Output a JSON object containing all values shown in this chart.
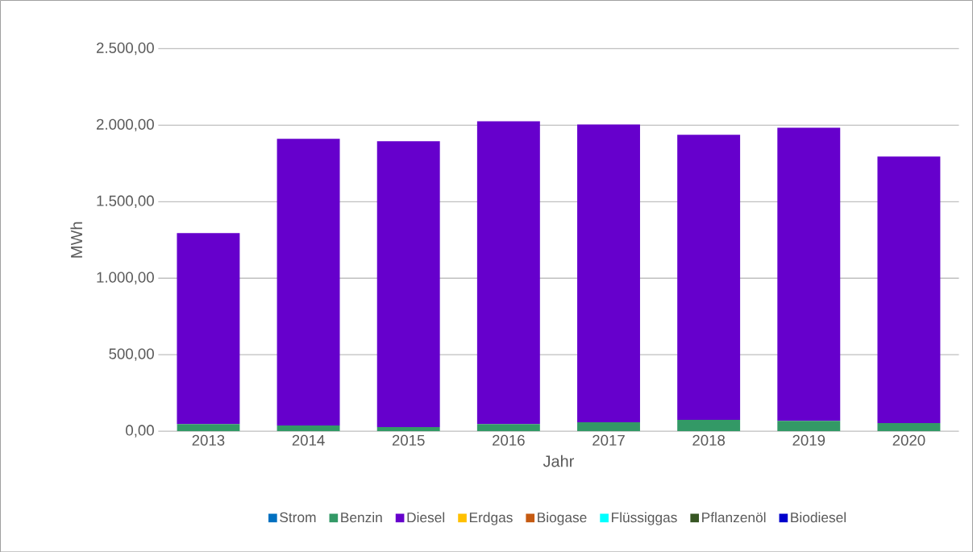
{
  "chart_data": {
    "type": "bar",
    "stacked": true,
    "xlabel": "Jahr",
    "ylabel": "MWh",
    "categories": [
      "2013",
      "2014",
      "2015",
      "2016",
      "2017",
      "2018",
      "2019",
      "2020"
    ],
    "series": [
      {
        "name": "Strom",
        "color": "#0070c0",
        "values": [
          0,
          0,
          0,
          0,
          0,
          0,
          0,
          0
        ]
      },
      {
        "name": "Benzin",
        "color": "#339966",
        "values": [
          47,
          37,
          26,
          47,
          58,
          74,
          68,
          53
        ]
      },
      {
        "name": "Diesel",
        "color": "#6600cc",
        "values": [
          1248,
          1874,
          1869,
          1979,
          1947,
          1863,
          1916,
          1742
        ]
      },
      {
        "name": "Erdgas",
        "color": "#ffc000",
        "values": [
          0,
          0,
          0,
          0,
          0,
          0,
          0,
          0
        ]
      },
      {
        "name": "Biogase",
        "color": "#c55a11",
        "values": [
          0,
          0,
          0,
          0,
          0,
          0,
          0,
          0
        ]
      },
      {
        "name": "Flüssiggas",
        "color": "#00ffff",
        "values": [
          0,
          0,
          0,
          0,
          0,
          0,
          0,
          0
        ]
      },
      {
        "name": "Pflanzenöl",
        "color": "#375623",
        "values": [
          0,
          0,
          0,
          0,
          0,
          0,
          0,
          0
        ]
      },
      {
        "name": "Biodiesel",
        "color": "#0000cc",
        "values": [
          0,
          0,
          0,
          0,
          0,
          0,
          0,
          0
        ]
      }
    ],
    "ylim": [
      0,
      2500
    ],
    "yticks": [
      {
        "value": 0,
        "label": "0,00"
      },
      {
        "value": 500,
        "label": "500,00"
      },
      {
        "value": 1000,
        "label": "1.000,00"
      },
      {
        "value": 1500,
        "label": "1.500,00"
      },
      {
        "value": 2000,
        "label": "2.000,00"
      },
      {
        "value": 2500,
        "label": "2.500,00"
      }
    ],
    "grid": "y",
    "legend": "bottom"
  }
}
